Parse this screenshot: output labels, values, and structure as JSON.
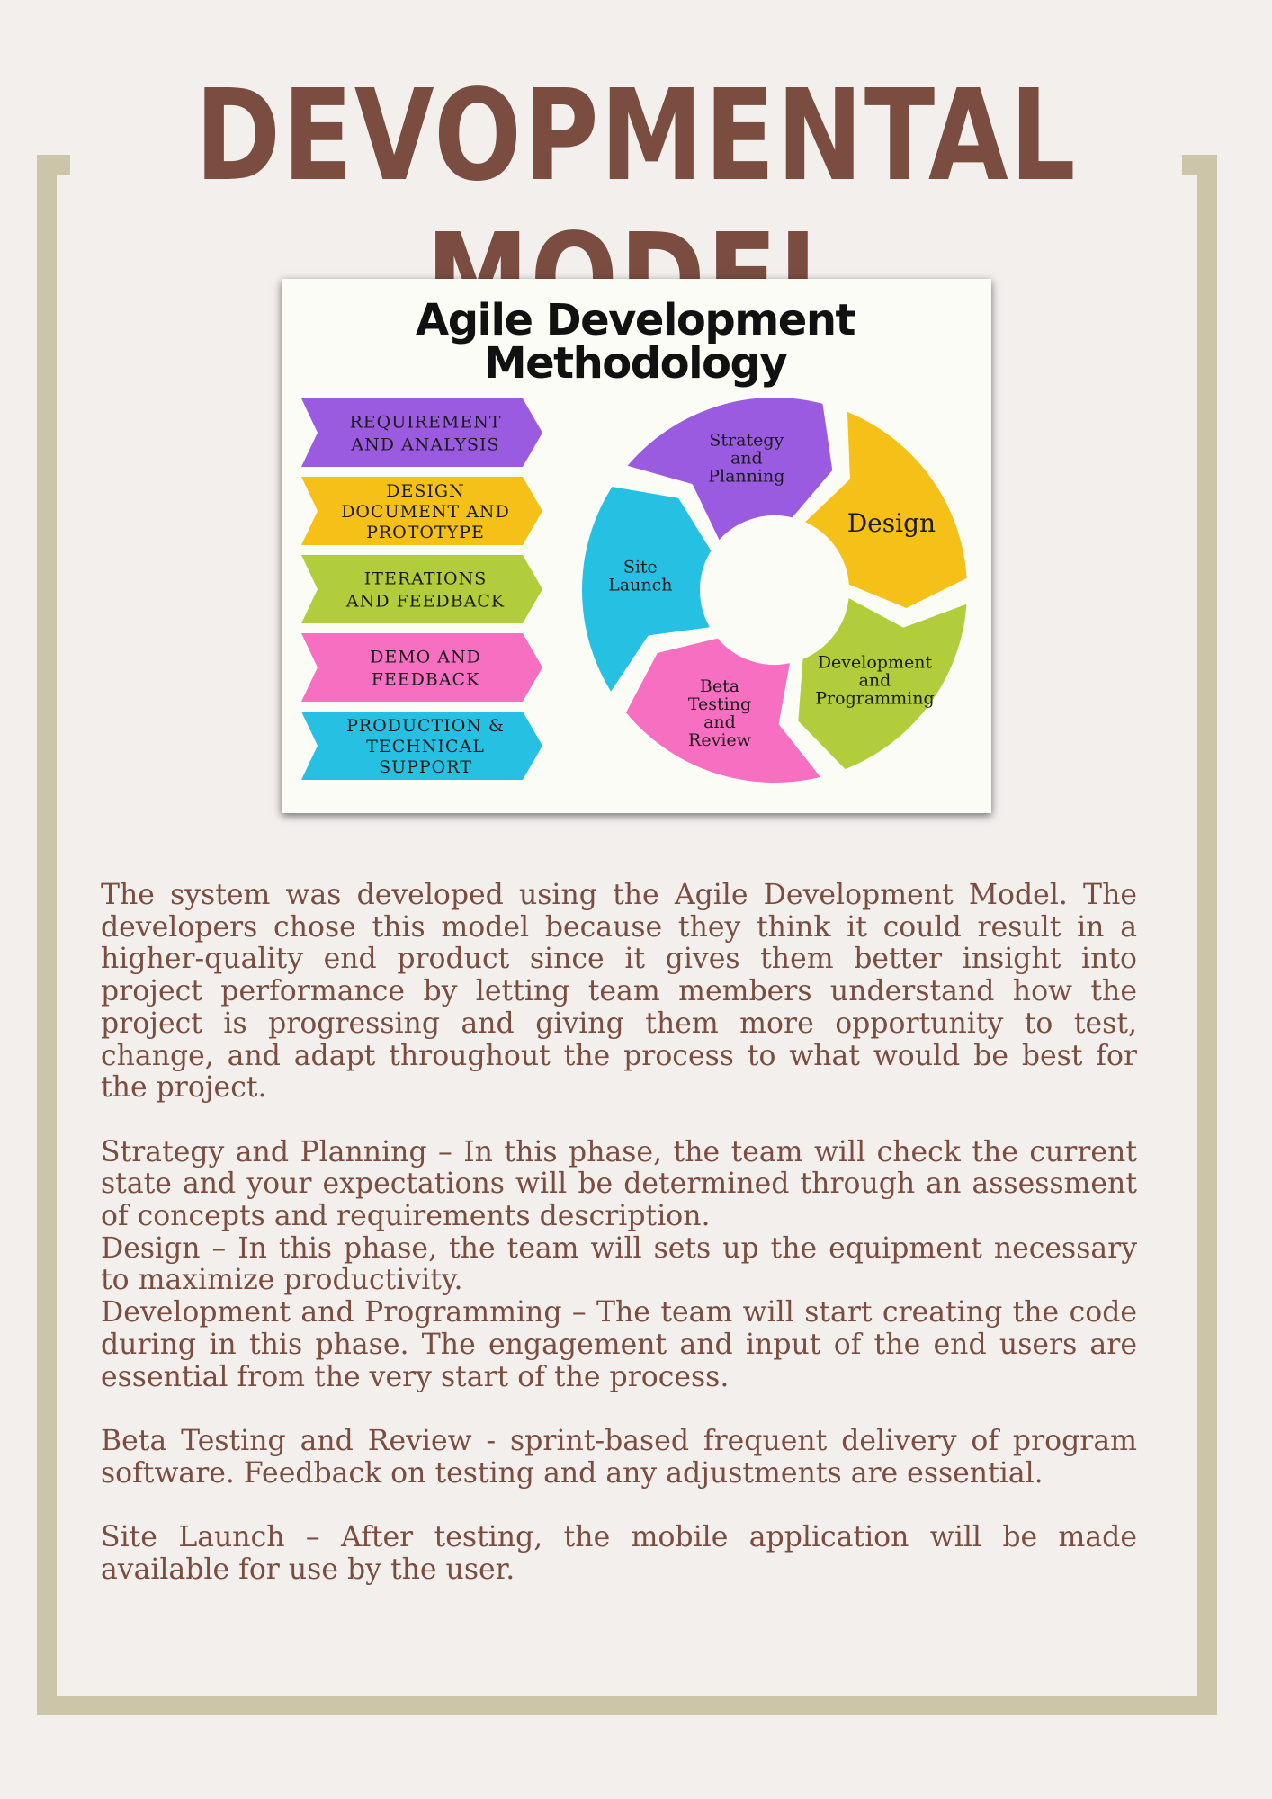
{
  "page": {
    "title": "DEVOPMENTAL MODEL"
  },
  "figure": {
    "title_line1": "Agile Development",
    "title_line2": "Methodology",
    "steps": [
      {
        "lines": [
          "REQUIREMENT",
          "AND ANALYSIS"
        ],
        "color": "#9a5be0"
      },
      {
        "lines": [
          "DESIGN",
          "DOCUMENT AND",
          "PROTOTYPE"
        ],
        "color": "#f5c018"
      },
      {
        "lines": [
          "ITERATIONS",
          "AND FEEDBACK"
        ],
        "color": "#b1cd3b"
      },
      {
        "lines": [
          "DEMO AND",
          "FEEDBACK"
        ],
        "color": "#f66fc1"
      },
      {
        "lines": [
          "PRODUCTION &",
          "TECHNICAL",
          "SUPPORT"
        ],
        "color": "#26c1e2"
      }
    ],
    "cycle": [
      {
        "lines": [
          "Strategy",
          "and",
          "Planning"
        ],
        "color": "#9a5be0"
      },
      {
        "lines": [
          "Design"
        ],
        "color": "#f5c018"
      },
      {
        "lines": [
          "Development",
          "and",
          "Programming"
        ],
        "color": "#b1cd3b"
      },
      {
        "lines": [
          "Beta",
          "Testing",
          "and",
          "Review"
        ],
        "color": "#f66fc1"
      },
      {
        "lines": [
          "Site",
          "Launch"
        ],
        "color": "#26c1e2"
      }
    ]
  },
  "body": {
    "paragraphs": [
      "The system was developed using the Agile Development Model. The developers chose this model because they think it could result in a higher-quality end product since it gives them better insight into project performance by letting team members understand how the project is progressing and giving them more opportunity to test, change, and adapt throughout the process to what would be best for the project.",
      "Strategy and Planning – In this phase, the team will check the current state and your expectations will be determined through an assessment of concepts and requirements description.",
      "Design – In this phase, the team will sets up the equipment necessary to maximize productivity.",
      "Development and Programming – The team will start creating the code during in this phase. The engagement and input of the end users are essential from the very start of the process.",
      "Beta Testing and Review - sprint-based frequent delivery of program software. Feedback on testing and any adjustments are essential.",
      "Site Launch – After testing, the mobile application will be made available for use by the user."
    ]
  }
}
